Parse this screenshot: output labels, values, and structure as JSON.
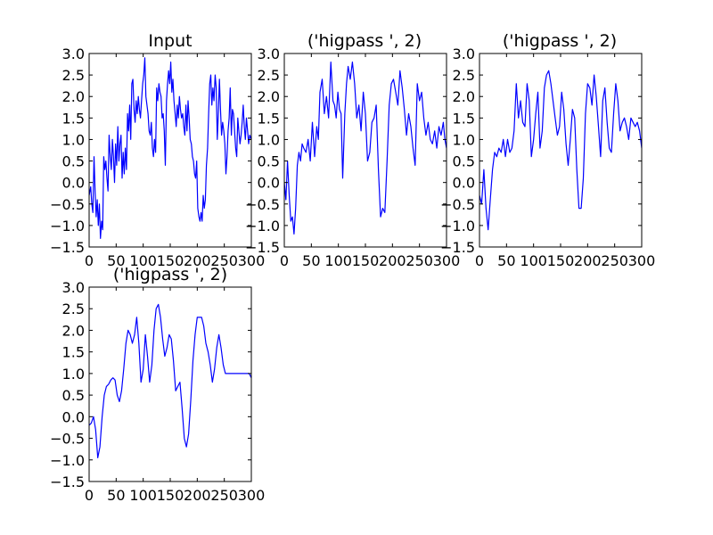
{
  "figure": {
    "background": "#ffffff",
    "line_color": "#0000ff"
  },
  "chart_data": [
    {
      "type": "line",
      "title": "Input",
      "xlim": [
        0,
        300
      ],
      "ylim": [
        -1.5,
        3.0
      ],
      "xticks": [
        0,
        50,
        100,
        150,
        200,
        250,
        300
      ],
      "xtick_labels": [
        "0",
        "50",
        "100",
        "150",
        "200",
        "250",
        "300"
      ],
      "yticks": [
        -1.5,
        -1.0,
        -0.5,
        0.0,
        0.5,
        1.0,
        1.5,
        2.0,
        2.5,
        3.0
      ],
      "ytick_labels": [
        "−1.5",
        "−1.0",
        "−0.5",
        "0.0",
        "0.5",
        "1.0",
        "1.5",
        "2.0",
        "2.5",
        "3.0"
      ],
      "series": [
        {
          "x": [
            0,
            3,
            5,
            7,
            9,
            11,
            13,
            15,
            17,
            19,
            21,
            23,
            25,
            27,
            29,
            31,
            33,
            35,
            37,
            39,
            41,
            43,
            45,
            47,
            49,
            51,
            53,
            55,
            57,
            59,
            61,
            63,
            65,
            67,
            69,
            71,
            73,
            75,
            77,
            79,
            81,
            83,
            85,
            87,
            89,
            91,
            93,
            95,
            97,
            99,
            101,
            103,
            105,
            107,
            109,
            111,
            113,
            115,
            117,
            119,
            121,
            123,
            125,
            127,
            129,
            131,
            133,
            135,
            137,
            139,
            141,
            143,
            145,
            147,
            149,
            151,
            153,
            155,
            157,
            159,
            161,
            163,
            165,
            167,
            169,
            171,
            173,
            175,
            177,
            179,
            181,
            183,
            185,
            187,
            189,
            191,
            193,
            195,
            197,
            199,
            201,
            203,
            205,
            207,
            209,
            211,
            213,
            215,
            217,
            219,
            221,
            223,
            225,
            227,
            229,
            231,
            233,
            235,
            237,
            239,
            241,
            243,
            245,
            247,
            249,
            251,
            253,
            255,
            257,
            259,
            261,
            263,
            265,
            267,
            269,
            271,
            273,
            275,
            277,
            279,
            281,
            283,
            285,
            287,
            289,
            291,
            293,
            295,
            297,
            300
          ],
          "y": [
            -0.3,
            -0.1,
            -0.5,
            -0.7,
            0.6,
            -0.2,
            -0.8,
            -0.4,
            -1.0,
            -0.5,
            -1.3,
            -0.9,
            -1.1,
            0.6,
            0.3,
            0.5,
            0.1,
            -0.2,
            1.1,
            0.6,
            0.3,
            1.0,
            0.6,
            0.0,
            0.9,
            0.4,
            1.3,
            0.5,
            0.9,
            1.1,
            0.1,
            0.7,
            0.2,
            0.8,
            0.3,
            1.6,
            1.2,
            1.8,
            1.0,
            2.3,
            2.4,
            1.7,
            1.4,
            1.9,
            1.6,
            2.0,
            1.7,
            1.5,
            1.9,
            2.3,
            2.5,
            2.9,
            2.0,
            1.8,
            1.6,
            1.2,
            1.1,
            1.4,
            0.8,
            0.6,
            1.0,
            0.7,
            2.2,
            1.9,
            2.3,
            2.1,
            2.0,
            1.5,
            1.6,
            1.2,
            0.4,
            1.9,
            2.3,
            2.6,
            2.3,
            2.8,
            2.1,
            2.4,
            1.9,
            1.6,
            1.3,
            1.8,
            1.5,
            2.0,
            1.7,
            1.5,
            1.6,
            1.3,
            1.1,
            1.8,
            1.2,
            1.9,
            1.5,
            1.0,
            0.9,
            0.6,
            0.5,
            0.2,
            0.1,
            0.5,
            -0.6,
            -0.8,
            -0.9,
            -0.7,
            -0.9,
            -0.3,
            -0.6,
            -0.4,
            0.4,
            0.8,
            1.6,
            2.3,
            2.5,
            1.8,
            2.2,
            1.9,
            2.5,
            2.2,
            1.0,
            1.6,
            2.4,
            1.7,
            1.1,
            1.4,
            1.2,
            0.9,
            0.2,
            0.6,
            1.2,
            1.5,
            2.2,
            1.1,
            1.7,
            1.6,
            1.2,
            0.8,
            0.6,
            1.5,
            1.2,
            0.9,
            1.1,
            1.4,
            1.8,
            1.3,
            1.0,
            1.5,
            1.2,
            0.9,
            1.1,
            1.0
          ]
        }
      ]
    },
    {
      "type": "line",
      "title": "('higpass ', 2)",
      "xlim": [
        0,
        300
      ],
      "ylim": [
        -1.5,
        3.0
      ],
      "xticks": [
        0,
        50,
        100,
        150,
        200,
        250,
        300
      ],
      "xtick_labels": [
        "0",
        "50",
        "100",
        "150",
        "200",
        "250",
        "300"
      ],
      "yticks": [
        -1.5,
        -1.0,
        -0.5,
        0.0,
        0.5,
        1.0,
        1.5,
        2.0,
        2.5,
        3.0
      ],
      "ytick_labels": [
        "−1.5",
        "−1.0",
        "−0.5",
        "0.0",
        "0.5",
        "1.0",
        "1.5",
        "2.0",
        "2.5",
        "3.0"
      ],
      "series": [
        {
          "x": [
            0,
            3,
            6,
            9,
            12,
            15,
            18,
            21,
            24,
            27,
            30,
            33,
            36,
            40,
            44,
            48,
            52,
            56,
            60,
            63,
            66,
            70,
            74,
            78,
            82,
            86,
            90,
            93,
            96,
            99,
            102,
            105,
            108,
            112,
            115,
            118,
            122,
            126,
            130,
            134,
            138,
            142,
            146,
            150,
            154,
            158,
            162,
            166,
            170,
            174,
            178,
            182,
            186,
            190,
            194,
            198,
            202,
            206,
            210,
            214,
            218,
            222,
            226,
            230,
            234,
            238,
            242,
            246,
            250,
            254,
            258,
            262,
            266,
            270,
            274,
            278,
            282,
            286,
            290,
            294,
            297,
            300
          ],
          "y": [
            0.0,
            -0.4,
            0.5,
            -0.3,
            -0.9,
            -0.8,
            -1.2,
            -0.6,
            0.4,
            0.7,
            0.5,
            0.9,
            0.8,
            0.7,
            1.0,
            0.5,
            1.4,
            0.6,
            1.3,
            1.0,
            2.1,
            2.4,
            1.6,
            2.0,
            1.5,
            2.8,
            1.9,
            1.8,
            1.5,
            2.1,
            1.7,
            1.6,
            0.1,
            1.6,
            2.3,
            2.7,
            2.4,
            2.8,
            2.3,
            1.5,
            1.8,
            1.2,
            2.1,
            1.6,
            0.5,
            0.7,
            1.4,
            1.5,
            1.8,
            0.3,
            -0.8,
            -0.6,
            -0.7,
            0.5,
            1.8,
            2.3,
            2.4,
            2.1,
            1.8,
            2.6,
            2.2,
            1.7,
            1.1,
            1.6,
            1.3,
            0.8,
            0.4,
            2.3,
            1.9,
            2.1,
            1.5,
            1.1,
            1.4,
            1.0,
            0.9,
            1.2,
            0.8,
            1.3,
            1.1,
            1.4,
            1.0,
            0.8
          ]
        }
      ]
    },
    {
      "type": "line",
      "title": "('higpass ', 2)",
      "xlim": [
        0,
        300
      ],
      "ylim": [
        -1.5,
        3.0
      ],
      "xticks": [
        0,
        50,
        100,
        150,
        200,
        250,
        300
      ],
      "xtick_labels": [
        "0",
        "50",
        "100",
        "150",
        "200",
        "250",
        "300"
      ],
      "yticks": [
        -1.5,
        -1.0,
        -0.5,
        0.0,
        0.5,
        1.0,
        1.5,
        2.0,
        2.5,
        3.0
      ],
      "ytick_labels": [
        "−1.5",
        "−1.0",
        "−0.5",
        "0.0",
        "0.5",
        "1.0",
        "1.5",
        "2.0",
        "2.5",
        "3.0"
      ],
      "series": [
        {
          "x": [
            0,
            4,
            8,
            12,
            16,
            20,
            24,
            28,
            32,
            36,
            40,
            44,
            48,
            52,
            56,
            60,
            64,
            68,
            72,
            76,
            80,
            84,
            88,
            92,
            96,
            100,
            104,
            108,
            112,
            116,
            120,
            124,
            128,
            132,
            136,
            140,
            144,
            148,
            152,
            156,
            160,
            164,
            168,
            172,
            176,
            180,
            184,
            188,
            192,
            196,
            200,
            204,
            208,
            212,
            216,
            220,
            224,
            228,
            232,
            236,
            240,
            244,
            248,
            252,
            256,
            260,
            264,
            268,
            272,
            276,
            280,
            284,
            288,
            292,
            296,
            300
          ],
          "y": [
            -0.3,
            -0.5,
            0.3,
            -0.6,
            -1.1,
            -0.4,
            0.3,
            0.7,
            0.6,
            0.8,
            0.7,
            1.0,
            0.6,
            1.0,
            0.7,
            0.8,
            1.2,
            2.3,
            1.5,
            1.9,
            1.4,
            1.3,
            2.3,
            1.9,
            0.6,
            1.0,
            1.6,
            2.1,
            0.8,
            1.2,
            2.2,
            2.5,
            2.6,
            2.3,
            1.9,
            1.5,
            1.1,
            1.3,
            2.1,
            1.7,
            0.9,
            0.4,
            1.0,
            1.7,
            1.5,
            0.3,
            -0.6,
            -0.6,
            0.1,
            1.6,
            2.3,
            2.2,
            1.8,
            2.5,
            2.0,
            1.3,
            0.6,
            1.9,
            2.2,
            1.4,
            0.8,
            0.7,
            1.6,
            2.3,
            1.9,
            1.2,
            1.4,
            1.5,
            1.3,
            1.0,
            1.5,
            1.4,
            1.3,
            1.4,
            1.2,
            0.8
          ]
        }
      ]
    },
    {
      "type": "line",
      "title": "('higpass ', 2)",
      "xlim": [
        0,
        300
      ],
      "ylim": [
        -1.5,
        3.0
      ],
      "xticks": [
        0,
        50,
        100,
        150,
        200,
        250,
        300
      ],
      "xtick_labels": [
        "0",
        "50",
        "100",
        "150",
        "200",
        "250",
        "300"
      ],
      "yticks": [
        -1.5,
        -1.0,
        -0.5,
        0.0,
        0.5,
        1.0,
        1.5,
        2.0,
        2.5,
        3.0
      ],
      "ytick_labels": [
        "−1.5",
        "−1.0",
        "−0.5",
        "0.0",
        "0.5",
        "1.0",
        "1.5",
        "2.0",
        "2.5",
        "3.0"
      ],
      "series": [
        {
          "x": [
            0,
            4,
            8,
            12,
            16,
            20,
            24,
            28,
            32,
            36,
            40,
            44,
            48,
            52,
            56,
            60,
            64,
            68,
            72,
            76,
            80,
            84,
            88,
            92,
            96,
            100,
            104,
            108,
            112,
            116,
            120,
            124,
            128,
            132,
            136,
            140,
            144,
            148,
            152,
            156,
            160,
            164,
            168,
            172,
            176,
            180,
            184,
            188,
            192,
            196,
            200,
            204,
            208,
            212,
            216,
            220,
            224,
            228,
            232,
            236,
            240,
            244,
            248,
            252,
            256,
            260,
            264,
            268,
            272,
            276,
            280,
            284,
            288,
            292,
            296,
            300
          ],
          "y": [
            -0.2,
            -0.15,
            0.0,
            -0.3,
            -0.95,
            -0.7,
            0.0,
            0.5,
            0.7,
            0.75,
            0.85,
            0.9,
            0.85,
            0.5,
            0.35,
            0.6,
            1.1,
            1.7,
            2.0,
            1.9,
            1.7,
            1.9,
            2.3,
            1.7,
            0.8,
            1.1,
            1.9,
            1.4,
            0.8,
            1.2,
            2.0,
            2.5,
            2.6,
            2.3,
            1.8,
            1.4,
            1.6,
            1.9,
            1.8,
            1.3,
            0.6,
            0.7,
            0.8,
            0.2,
            -0.5,
            -0.7,
            -0.4,
            0.4,
            1.3,
            1.9,
            2.3,
            2.3,
            2.3,
            2.1,
            1.7,
            1.5,
            1.2,
            0.8,
            1.1,
            1.6,
            1.9,
            1.6,
            1.2,
            1.0,
            1.0,
            1.0,
            1.0,
            1.0,
            1.0,
            1.0,
            1.0,
            1.0,
            1.0,
            1.0,
            1.0,
            0.9
          ]
        }
      ]
    }
  ]
}
